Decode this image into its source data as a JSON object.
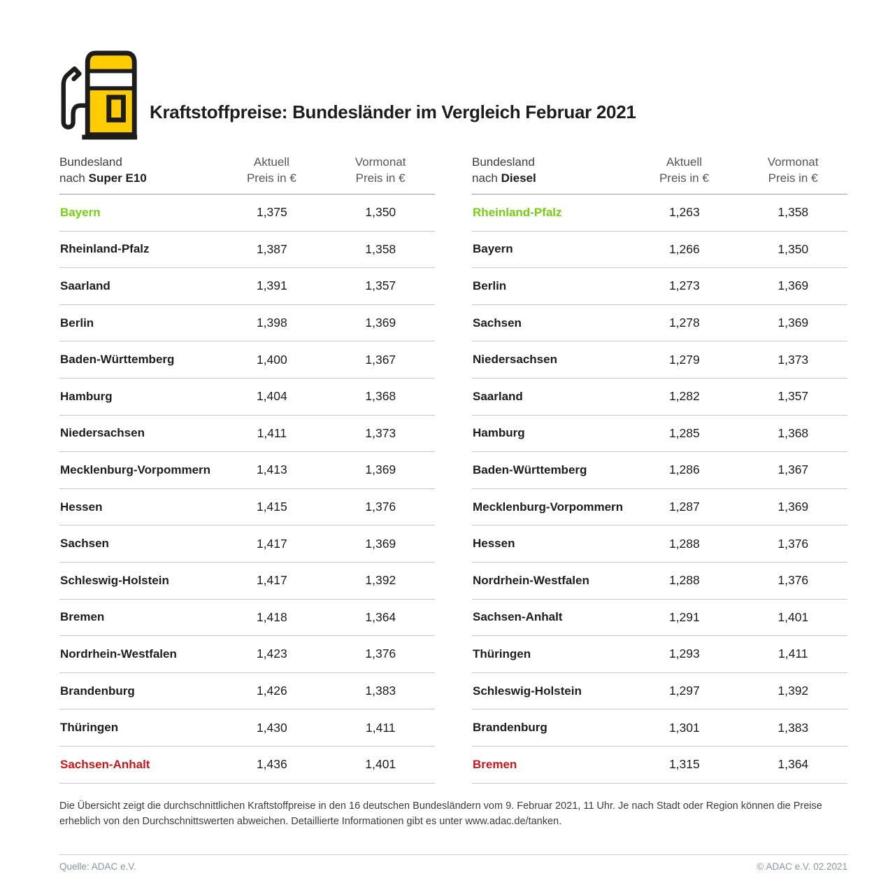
{
  "header": {
    "title": "Kraftstoffpreise: Bundesländer im Vergleich Februar 2021"
  },
  "colors": {
    "adac_yellow": "#FFCC00",
    "cheapest_green": "#74D20C",
    "most_expensive_red": "#CC1517",
    "row_divider": "#C9C9C9",
    "header_divider": "#9C9C9C",
    "footer_text": "#8A95A1"
  },
  "tables": [
    {
      "name": "super-e10",
      "head": {
        "col1_line1": "Bundesland",
        "col1_prefix": "nach",
        "col1_fuel": "Super E10",
        "col2_line1": "Aktuell",
        "col2_line2": "Preis in €",
        "col3_line1": "Vormonat",
        "col3_line2": "Preis in €"
      },
      "rows": [
        {
          "state": "Bayern",
          "aktuell": "1,375",
          "vormonat": "1,350",
          "highlight": "green"
        },
        {
          "state": "Rheinland-Pfalz",
          "aktuell": "1,387",
          "vormonat": "1,358"
        },
        {
          "state": "Saarland",
          "aktuell": "1,391",
          "vormonat": "1,357"
        },
        {
          "state": "Berlin",
          "aktuell": "1,398",
          "vormonat": "1,369"
        },
        {
          "state": "Baden-Württemberg",
          "aktuell": "1,400",
          "vormonat": "1,367"
        },
        {
          "state": "Hamburg",
          "aktuell": "1,404",
          "vormonat": "1,368"
        },
        {
          "state": "Niedersachsen",
          "aktuell": "1,411",
          "vormonat": "1,373"
        },
        {
          "state": "Mecklenburg-Vorpommern",
          "aktuell": "1,413",
          "vormonat": "1,369"
        },
        {
          "state": "Hessen",
          "aktuell": "1,415",
          "vormonat": "1,376"
        },
        {
          "state": "Sachsen",
          "aktuell": "1,417",
          "vormonat": "1,369"
        },
        {
          "state": "Schleswig-Holstein",
          "aktuell": "1,417",
          "vormonat": "1,392"
        },
        {
          "state": "Bremen",
          "aktuell": "1,418",
          "vormonat": "1,364"
        },
        {
          "state": "Nordrhein-Westfalen",
          "aktuell": "1,423",
          "vormonat": "1,376"
        },
        {
          "state": "Brandenburg",
          "aktuell": "1,426",
          "vormonat": "1,383"
        },
        {
          "state": "Thüringen",
          "aktuell": "1,430",
          "vormonat": "1,411"
        },
        {
          "state": "Sachsen-Anhalt",
          "aktuell": "1,436",
          "vormonat": "1,401",
          "highlight": "red"
        }
      ]
    },
    {
      "name": "diesel",
      "head": {
        "col1_line1": "Bundesland",
        "col1_prefix": "nach",
        "col1_fuel": "Diesel",
        "col2_line1": "Aktuell",
        "col2_line2": "Preis in €",
        "col3_line1": "Vormonat",
        "col3_line2": "Preis in €"
      },
      "rows": [
        {
          "state": "Rheinland-Pfalz",
          "aktuell": "1,263",
          "vormonat": "1,358",
          "highlight": "green"
        },
        {
          "state": "Bayern",
          "aktuell": "1,266",
          "vormonat": "1,350"
        },
        {
          "state": "Berlin",
          "aktuell": "1,273",
          "vormonat": "1,369"
        },
        {
          "state": "Sachsen",
          "aktuell": "1,278",
          "vormonat": "1,369"
        },
        {
          "state": "Niedersachsen",
          "aktuell": "1,279",
          "vormonat": "1,373"
        },
        {
          "state": "Saarland",
          "aktuell": "1,282",
          "vormonat": "1,357"
        },
        {
          "state": "Hamburg",
          "aktuell": "1,285",
          "vormonat": "1,368"
        },
        {
          "state": "Baden-Württemberg",
          "aktuell": "1,286",
          "vormonat": "1,367"
        },
        {
          "state": "Mecklenburg-Vorpommern",
          "aktuell": "1,287",
          "vormonat": "1,369"
        },
        {
          "state": "Hessen",
          "aktuell": "1,288",
          "vormonat": "1,376"
        },
        {
          "state": "Nordrhein-Westfalen",
          "aktuell": "1,288",
          "vormonat": "1,376"
        },
        {
          "state": "Sachsen-Anhalt",
          "aktuell": "1,291",
          "vormonat": "1,401"
        },
        {
          "state": "Thüringen",
          "aktuell": "1,293",
          "vormonat": "1,411"
        },
        {
          "state": "Schleswig-Holstein",
          "aktuell": "1,297",
          "vormonat": "1,392"
        },
        {
          "state": "Brandenburg",
          "aktuell": "1,301",
          "vormonat": "1,383"
        },
        {
          "state": "Bremen",
          "aktuell": "1,315",
          "vormonat": "1,364",
          "highlight": "red"
        }
      ]
    }
  ],
  "chart_data": [
    {
      "type": "table",
      "title": "Kraftstoffpreise: Bundesländer im Vergleich Februar 2021 — Super E10",
      "columns": [
        "Bundesland nach Super E10",
        "Aktuell Preis in €",
        "Vormonat Preis in €"
      ],
      "rows": [
        [
          "Bayern",
          1.375,
          1.35
        ],
        [
          "Rheinland-Pfalz",
          1.387,
          1.358
        ],
        [
          "Saarland",
          1.391,
          1.357
        ],
        [
          "Berlin",
          1.398,
          1.369
        ],
        [
          "Baden-Württemberg",
          1.4,
          1.367
        ],
        [
          "Hamburg",
          1.404,
          1.368
        ],
        [
          "Niedersachsen",
          1.411,
          1.373
        ],
        [
          "Mecklenburg-Vorpommern",
          1.413,
          1.369
        ],
        [
          "Hessen",
          1.415,
          1.376
        ],
        [
          "Sachsen",
          1.417,
          1.369
        ],
        [
          "Schleswig-Holstein",
          1.417,
          1.392
        ],
        [
          "Bremen",
          1.418,
          1.364
        ],
        [
          "Nordrhein-Westfalen",
          1.423,
          1.376
        ],
        [
          "Brandenburg",
          1.426,
          1.383
        ],
        [
          "Thüringen",
          1.43,
          1.411
        ],
        [
          "Sachsen-Anhalt",
          1.436,
          1.401
        ]
      ],
      "annotations": {
        "cheapest_green": "Bayern",
        "most_expensive_red": "Sachsen-Anhalt"
      }
    },
    {
      "type": "table",
      "title": "Kraftstoffpreise: Bundesländer im Vergleich Februar 2021 — Diesel",
      "columns": [
        "Bundesland nach Diesel",
        "Aktuell Preis in €",
        "Vormonat Preis in €"
      ],
      "rows": [
        [
          "Rheinland-Pfalz",
          1.263,
          1.358
        ],
        [
          "Bayern",
          1.266,
          1.35
        ],
        [
          "Berlin",
          1.273,
          1.369
        ],
        [
          "Sachsen",
          1.278,
          1.369
        ],
        [
          "Niedersachsen",
          1.279,
          1.373
        ],
        [
          "Saarland",
          1.282,
          1.357
        ],
        [
          "Hamburg",
          1.285,
          1.368
        ],
        [
          "Baden-Württemberg",
          1.286,
          1.367
        ],
        [
          "Mecklenburg-Vorpommern",
          1.287,
          1.369
        ],
        [
          "Hessen",
          1.288,
          1.376
        ],
        [
          "Nordrhein-Westfalen",
          1.288,
          1.376
        ],
        [
          "Sachsen-Anhalt",
          1.291,
          1.401
        ],
        [
          "Thüringen",
          1.293,
          1.411
        ],
        [
          "Schleswig-Holstein",
          1.297,
          1.392
        ],
        [
          "Brandenburg",
          1.301,
          1.383
        ],
        [
          "Bremen",
          1.315,
          1.364
        ]
      ],
      "annotations": {
        "cheapest_green": "Rheinland-Pfalz",
        "most_expensive_red": "Bremen"
      }
    }
  ],
  "footnote": {
    "text": "Die Übersicht zeigt die durchschnittlichen Kraftstoffpreise in den 16 deutschen Bundesländern vom 9. Februar 2021, 11 Uhr. Je nach Stadt oder Region können die Preise erheblich von den Durchschnittswerten abweichen. Detaillierte Informationen gibt es unter www.adac.de/tanken."
  },
  "footer": {
    "source": "Quelle: ADAC e.V.",
    "copyright": "© ADAC e.V. 02.2021"
  }
}
